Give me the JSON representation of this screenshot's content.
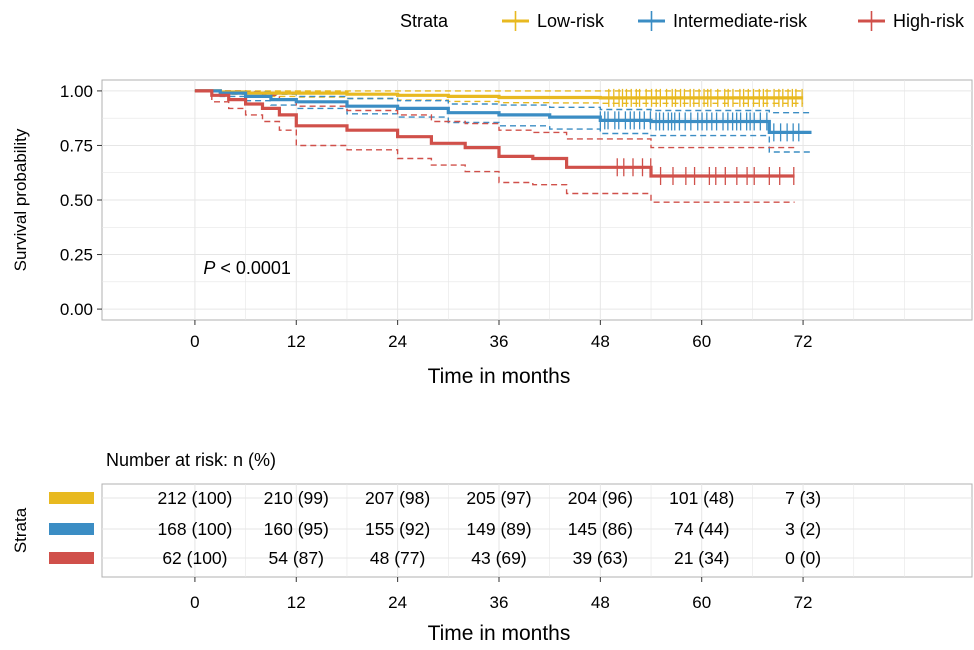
{
  "chart_data": [
    {
      "type": "line",
      "subtype": "kaplan-meier",
      "title": "",
      "xlabel": "Time in months",
      "ylabel": "Survival probability",
      "xlim": [
        -11,
        92
      ],
      "ylim": [
        -0.05,
        1.05
      ],
      "x_ticks": [
        0,
        12,
        24,
        36,
        48,
        60,
        72
      ],
      "y_ticks": [
        0.0,
        0.25,
        0.5,
        0.75,
        1.0
      ],
      "y_tick_labels": [
        "0.00",
        "0.25",
        "0.50",
        "0.75",
        "1.00"
      ],
      "grid": true,
      "annotation": {
        "prefix": "P",
        "text": " < 0.0001"
      },
      "legend": {
        "title": "Strata",
        "position": "top",
        "entries": [
          "Low-risk",
          "Intermediate-risk",
          "High-risk"
        ]
      },
      "series": [
        {
          "name": "Low-risk",
          "color": "#e8b920",
          "x": [
            0,
            3,
            6,
            9,
            12,
            18,
            24,
            30,
            36,
            42,
            48,
            54,
            60,
            66,
            72
          ],
          "y": [
            1.0,
            0.995,
            0.99,
            0.99,
            0.99,
            0.985,
            0.98,
            0.975,
            0.97,
            0.97,
            0.968,
            0.968,
            0.968,
            0.968,
            0.968
          ],
          "ci_lower": [
            1.0,
            0.985,
            0.978,
            0.975,
            0.972,
            0.965,
            0.958,
            0.952,
            0.946,
            0.945,
            0.943,
            0.943,
            0.943,
            0.943,
            0.943
          ],
          "ci_upper": [
            1.0,
            1.0,
            1.0,
            1.0,
            1.0,
            1.0,
            1.0,
            1.0,
            1.0,
            1.0,
            1.0,
            1.0,
            1.0,
            1.0,
            1.0
          ],
          "censor_x_range": [
            49,
            72
          ]
        },
        {
          "name": "Intermediate-risk",
          "color": "#3b8dc4",
          "x": [
            0,
            3,
            6,
            9,
            12,
            18,
            24,
            30,
            36,
            42,
            48,
            54,
            60,
            66,
            68,
            73
          ],
          "y": [
            1.0,
            0.99,
            0.975,
            0.96,
            0.95,
            0.93,
            0.92,
            0.9,
            0.89,
            0.88,
            0.865,
            0.86,
            0.86,
            0.86,
            0.81,
            0.81
          ],
          "ci_lower": [
            1.0,
            0.975,
            0.955,
            0.935,
            0.92,
            0.895,
            0.88,
            0.855,
            0.84,
            0.825,
            0.805,
            0.795,
            0.795,
            0.795,
            0.72,
            0.72
          ],
          "ci_upper": [
            1.0,
            1.0,
            0.995,
            0.985,
            0.975,
            0.965,
            0.955,
            0.94,
            0.935,
            0.925,
            0.915,
            0.91,
            0.91,
            0.91,
            0.9,
            0.9
          ],
          "censor_x_range": [
            48,
            72
          ]
        },
        {
          "name": "High-risk",
          "color": "#d0504a",
          "x": [
            0,
            2,
            4,
            6,
            8,
            10,
            12,
            18,
            24,
            28,
            32,
            36,
            40,
            44,
            48,
            54,
            60,
            66,
            71
          ],
          "y": [
            1.0,
            0.98,
            0.96,
            0.94,
            0.92,
            0.89,
            0.84,
            0.82,
            0.79,
            0.76,
            0.74,
            0.7,
            0.69,
            0.65,
            0.65,
            0.61,
            0.61,
            0.61,
            0.61
          ],
          "ci_lower": [
            1.0,
            0.95,
            0.92,
            0.89,
            0.86,
            0.82,
            0.75,
            0.73,
            0.69,
            0.66,
            0.63,
            0.58,
            0.57,
            0.53,
            0.53,
            0.49,
            0.49,
            0.49,
            0.49
          ],
          "ci_upper": [
            1.0,
            1.0,
            1.0,
            0.995,
            0.98,
            0.96,
            0.93,
            0.91,
            0.89,
            0.86,
            0.85,
            0.82,
            0.81,
            0.78,
            0.78,
            0.74,
            0.74,
            0.74,
            0.74
          ],
          "censor_x_range": [
            50,
            71
          ]
        }
      ]
    },
    {
      "type": "table",
      "title": "Number at risk: n (%)",
      "ylabel": "Strata",
      "xlabel": "Time in months",
      "x_ticks": [
        0,
        12,
        24,
        36,
        48,
        60,
        72
      ],
      "rows": [
        {
          "name": "Low-risk",
          "color": "#e8b920",
          "values": [
            "212 (100)",
            "210 (99)",
            "207 (98)",
            "205 (97)",
            "204 (96)",
            "101 (48)",
            "7 (3)"
          ]
        },
        {
          "name": "Intermediate-risk",
          "color": "#3b8dc4",
          "values": [
            "168 (100)",
            "160 (95)",
            "155 (92)",
            "149 (89)",
            "145 (86)",
            "74 (44)",
            "3 (2)"
          ]
        },
        {
          "name": "High-risk",
          "color": "#d0504a",
          "values": [
            "62 (100)",
            "54 (87)",
            "48 (77)",
            "43 (69)",
            "39 (63)",
            "21 (34)",
            "0 (0)"
          ]
        }
      ]
    }
  ]
}
